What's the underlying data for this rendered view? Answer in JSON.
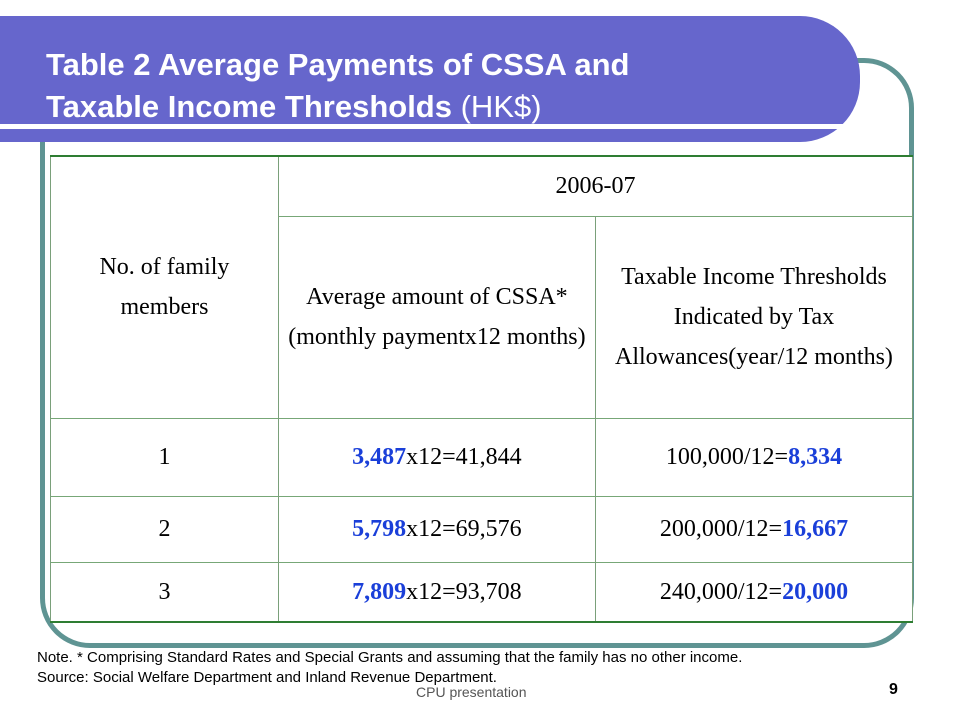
{
  "title": {
    "line1": "Table 2 Average Payments of CSSA and",
    "line2": "Taxable Income Thresholds",
    "unit": "(HK$)"
  },
  "table": {
    "head_family": "No. of family members",
    "head_year": "2006-07",
    "head_cssa": "Average amount of CSSA* (monthly paymentx12 months)",
    "head_tax": "Taxable Income Thresholds Indicated by Tax Allowances(year/12 months)",
    "rows": [
      {
        "members": "1",
        "cssa_bold": "3,487",
        "cssa_rest": "x12=41,844",
        "tax_rest": "100,000/12=",
        "tax_bold": "8,334"
      },
      {
        "members": "2",
        "cssa_bold": "5,798",
        "cssa_rest": "x12=69,576",
        "tax_rest": "200,000/12=",
        "tax_bold": "16,667"
      },
      {
        "members": "3",
        "cssa_bold": "7,809",
        "cssa_rest": "x12=93,708",
        "tax_rest": "240,000/12=",
        "tax_bold": "20,000"
      }
    ]
  },
  "notes": {
    "line1": "Note. * Comprising Standard Rates and Special Grants and assuming that the family has no other income.",
    "line2": "Source: Social Welfare Department and Inland Revenue Department."
  },
  "footer": {
    "center": "CPU presentation",
    "page": "9"
  },
  "colors": {
    "banner": "#6666cc",
    "frame": "#5f9493",
    "highlight": "#1a3fd9"
  }
}
